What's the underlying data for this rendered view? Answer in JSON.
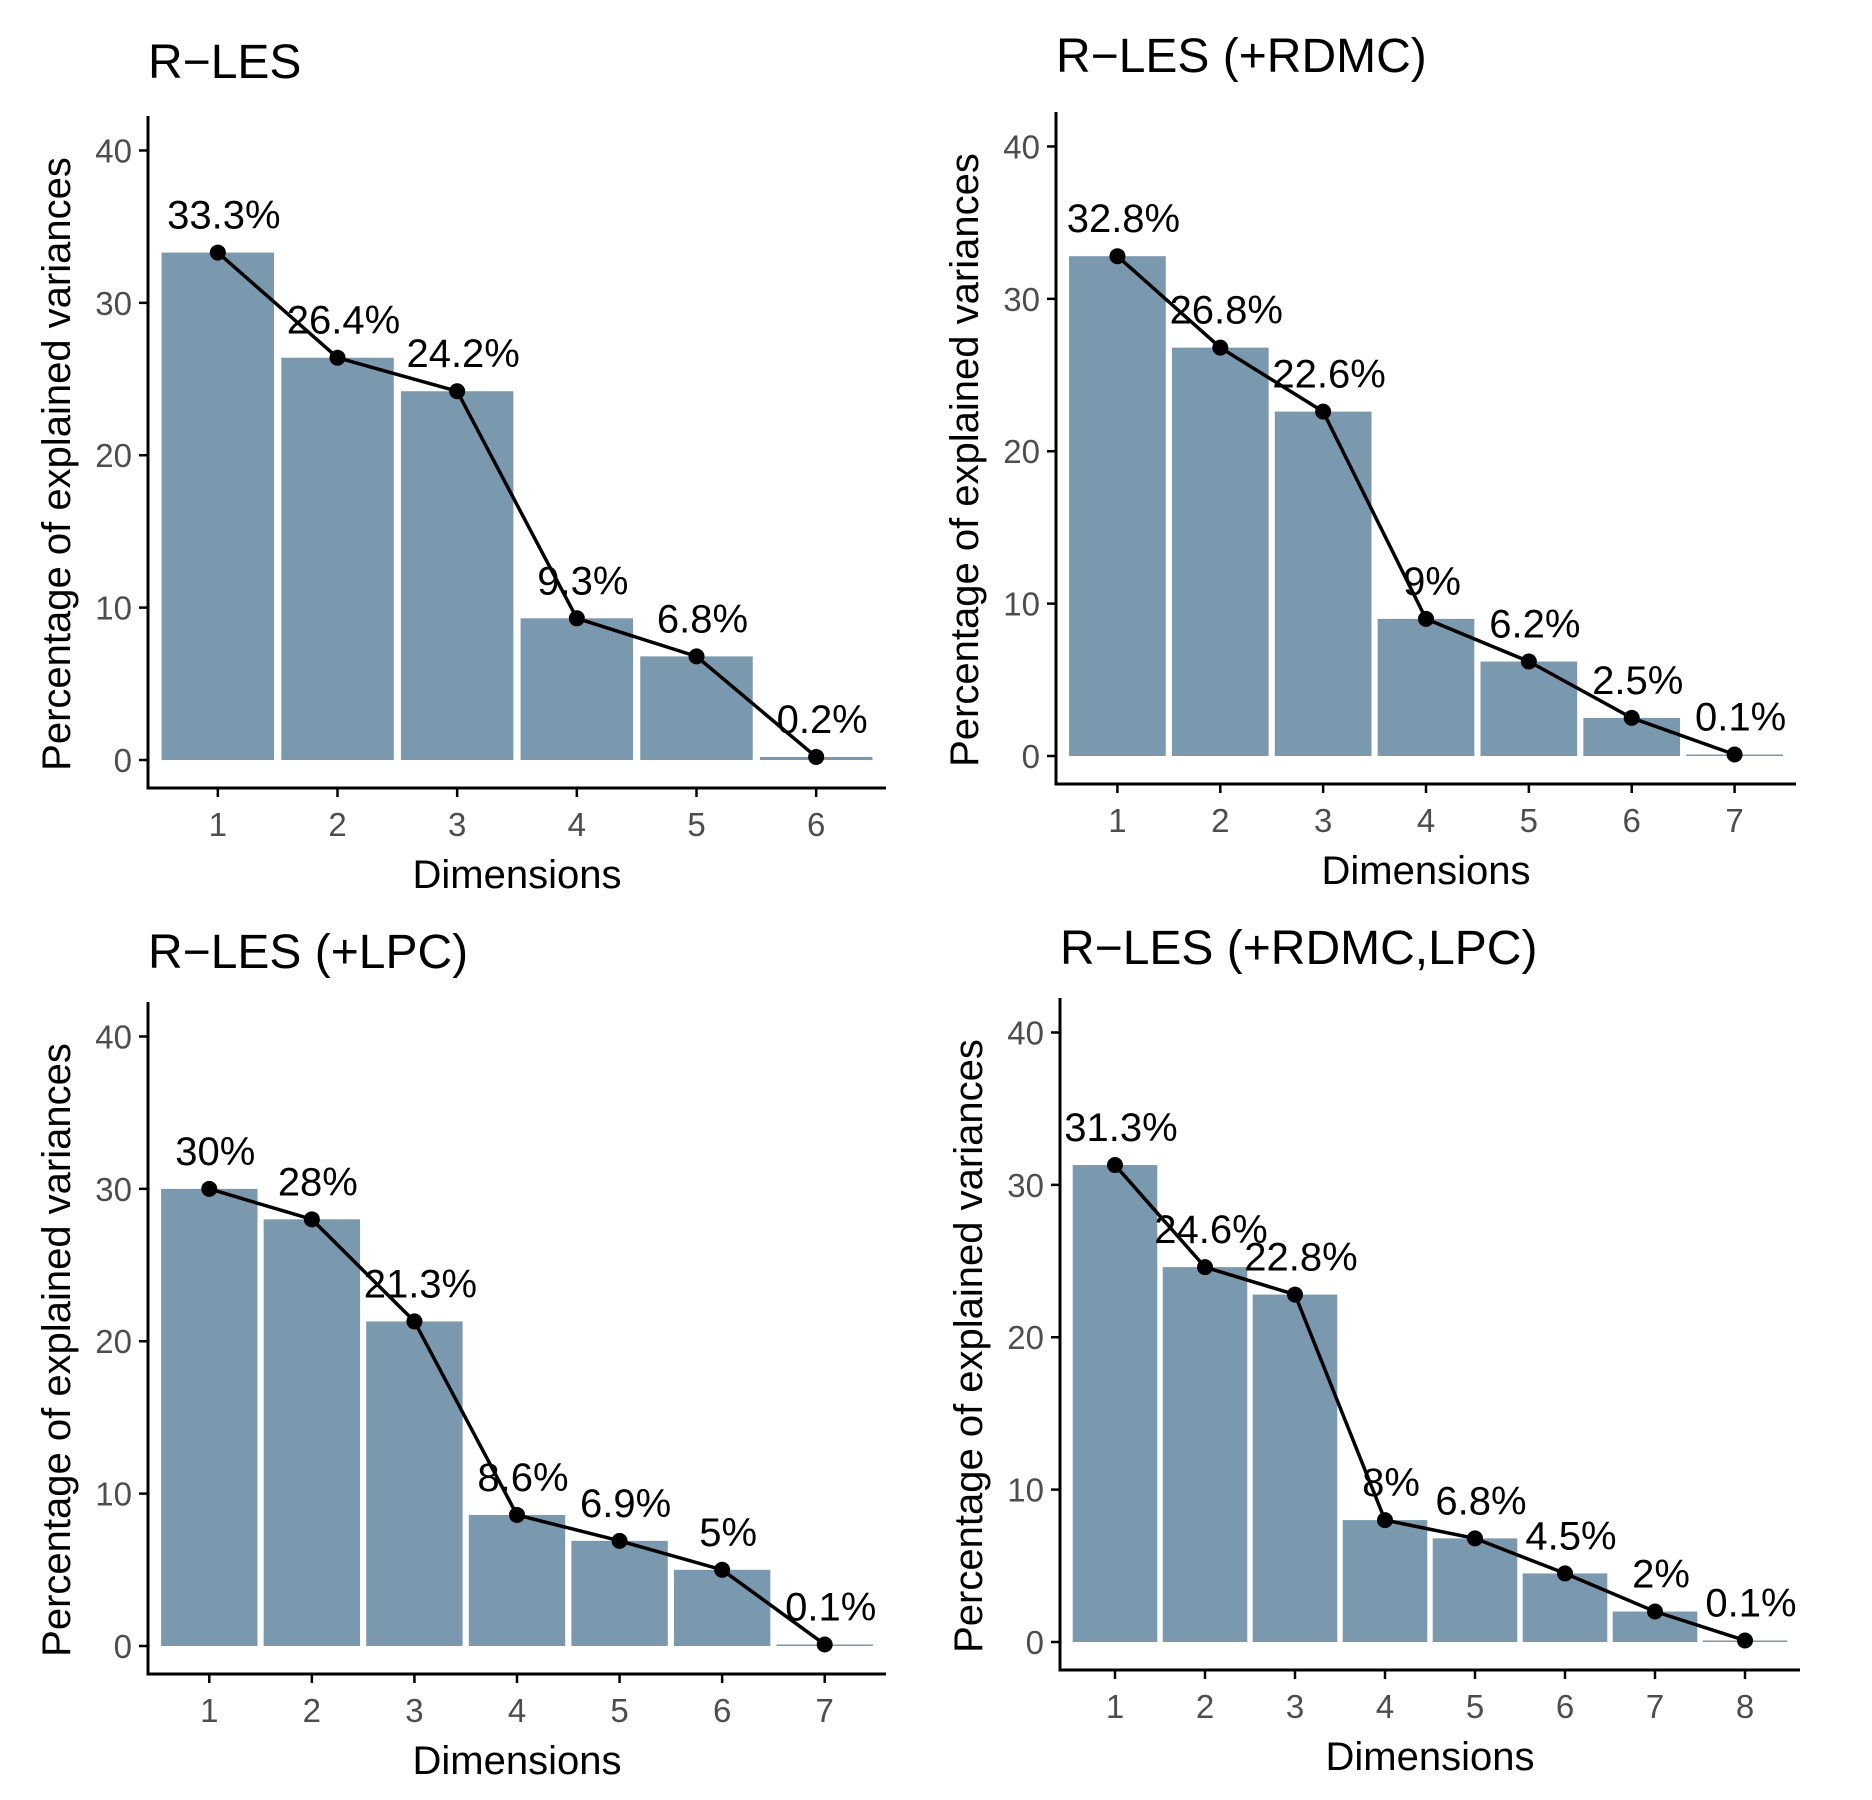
{
  "colors": {
    "bar": "#7a98ae",
    "line": "#000000",
    "axis": "#000000",
    "tick_text": "#4d4d4d"
  },
  "chart_data": [
    {
      "type": "bar",
      "title": "R−LES",
      "xlabel": "Dimensions",
      "ylabel": "Percentage of explained variances",
      "ylim": [
        0,
        42
      ],
      "yticks": [
        "0",
        "10",
        "20",
        "30",
        "40"
      ],
      "categories": [
        "1",
        "2",
        "3",
        "4",
        "5",
        "6"
      ],
      "values": [
        33.3,
        26.4,
        24.2,
        9.3,
        6.8,
        0.2
      ],
      "labels": [
        "33.3%",
        "26.4%",
        "24.2%",
        "9.3%",
        "6.8%",
        "0.2%"
      ],
      "line_overlay": true,
      "grid": false
    },
    {
      "type": "bar",
      "title": "R−LES (+RDMC)",
      "xlabel": "Dimensions",
      "ylabel": "Percentage of explained variances",
      "ylim": [
        0,
        42
      ],
      "yticks": [
        "0",
        "10",
        "20",
        "30",
        "40"
      ],
      "categories": [
        "1",
        "2",
        "3",
        "4",
        "5",
        "6",
        "7"
      ],
      "values": [
        32.8,
        26.8,
        22.6,
        9,
        6.2,
        2.5,
        0.1
      ],
      "labels": [
        "32.8%",
        "26.8%",
        "22.6%",
        "9%",
        "6.2%",
        "2.5%",
        "0.1%"
      ],
      "line_overlay": true,
      "grid": false
    },
    {
      "type": "bar",
      "title": "R−LES (+LPC)",
      "xlabel": "Dimensions",
      "ylabel": "Percentage of explained variances",
      "ylim": [
        0,
        42
      ],
      "yticks": [
        "0",
        "10",
        "20",
        "30",
        "40"
      ],
      "categories": [
        "1",
        "2",
        "3",
        "4",
        "5",
        "6",
        "7"
      ],
      "values": [
        30,
        28,
        21.3,
        8.6,
        6.9,
        5,
        0.1
      ],
      "labels": [
        "30%",
        "28%",
        "21.3%",
        "8.6%",
        "6.9%",
        "5%",
        "0.1%"
      ],
      "line_overlay": true,
      "grid": false
    },
    {
      "type": "bar",
      "title": "R−LES (+RDMC,LPC)",
      "xlabel": "Dimensions",
      "ylabel": "Percentage of explained variances",
      "ylim": [
        0,
        42
      ],
      "yticks": [
        "0",
        "10",
        "20",
        "30",
        "40"
      ],
      "categories": [
        "1",
        "2",
        "3",
        "4",
        "5",
        "6",
        "7",
        "8"
      ],
      "values": [
        31.3,
        24.6,
        22.8,
        8,
        6.8,
        4.5,
        2,
        0.1
      ],
      "labels": [
        "31.3%",
        "24.6%",
        "22.8%",
        "8%",
        "6.8%",
        "4.5%",
        "2%",
        "0.1%"
      ],
      "line_overlay": true,
      "grid": false
    }
  ]
}
